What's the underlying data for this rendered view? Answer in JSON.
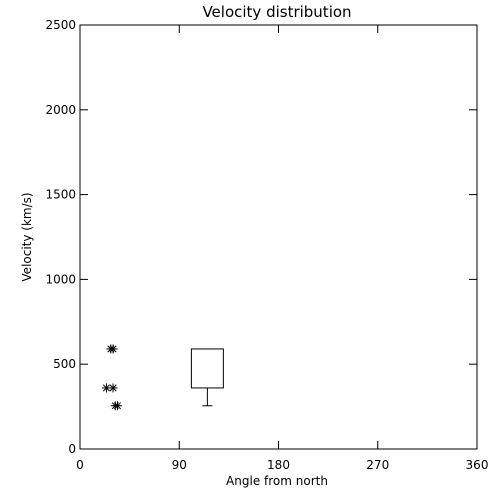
{
  "chart_data": {
    "type": "scatter",
    "title": "Velocity distribution",
    "xlabel": "Angle from north",
    "ylabel": "Velocity (km/s)",
    "xlim": [
      0,
      360
    ],
    "ylim": [
      0,
      2500
    ],
    "x_ticks": [
      0,
      90,
      180,
      270,
      360
    ],
    "y_ticks": [
      0,
      500,
      1000,
      1500,
      2000,
      2500
    ],
    "grid": false,
    "legend": "none",
    "series": [
      {
        "marker": "asterisk",
        "points": [
          {
            "x": 28,
            "y": 590
          },
          {
            "x": 30,
            "y": 590
          },
          {
            "x": 24,
            "y": 360
          },
          {
            "x": 30,
            "y": 360
          },
          {
            "x": 32,
            "y": 255
          },
          {
            "x": 34,
            "y": 255
          }
        ]
      }
    ],
    "boxes": [
      {
        "x_min": 101,
        "x_max": 130,
        "y_low": 360,
        "y_high": 590,
        "whisker_low": 255,
        "whisker_cap_half_width": 5
      }
    ],
    "colors": {
      "foreground": "#000000",
      "background": "#ffffff"
    }
  }
}
